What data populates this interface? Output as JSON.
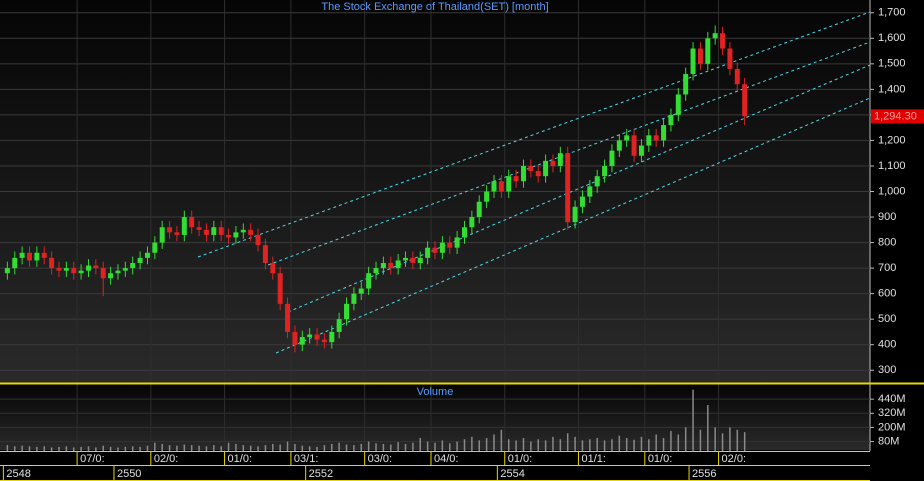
{
  "chart_data": [
    {
      "type": "candlestick",
      "title": "The Stock Exchange of Thailand(SET) [month]",
      "open": [
        680,
        700,
        740,
        760,
        730,
        760,
        740,
        700,
        690,
        700,
        680,
        690,
        710,
        700,
        660,
        680,
        690,
        700,
        720,
        740,
        760,
        800,
        860,
        840,
        830,
        900,
        860,
        850,
        830,
        860,
        830,
        820,
        840,
        850,
        830,
        790,
        720,
        680,
        560,
        450,
        400,
        430,
        440,
        420,
        410,
        450,
        500,
        560,
        600,
        620,
        680,
        700,
        720,
        700,
        730,
        740,
        720,
        740,
        780,
        760,
        800,
        780,
        820,
        860,
        900,
        960,
        1000,
        1040,
        1000,
        1060,
        1040,
        1100,
        1080,
        1060,
        1120,
        1100,
        1150,
        880,
        940,
        980,
        1020,
        1060,
        1100,
        1160,
        1200,
        1220,
        1140,
        1180,
        1220,
        1200,
        1260,
        1300,
        1380,
        1460,
        1560,
        1500,
        1600,
        1620,
        1560,
        1480,
        1420
      ],
      "high": [
        725,
        765,
        785,
        785,
        785,
        785,
        765,
        725,
        725,
        725,
        715,
        735,
        735,
        725,
        705,
        715,
        725,
        745,
        765,
        785,
        825,
        885,
        885,
        865,
        925,
        925,
        885,
        875,
        885,
        885,
        855,
        865,
        875,
        875,
        855,
        815,
        745,
        705,
        585,
        475,
        455,
        465,
        465,
        445,
        475,
        525,
        585,
        625,
        645,
        705,
        725,
        745,
        745,
        755,
        765,
        765,
        765,
        805,
        805,
        825,
        825,
        845,
        885,
        925,
        985,
        1025,
        1065,
        1065,
        1085,
        1085,
        1125,
        1125,
        1105,
        1145,
        1145,
        1175,
        1175,
        965,
        1005,
        1045,
        1085,
        1125,
        1185,
        1225,
        1245,
        1245,
        1205,
        1245,
        1245,
        1285,
        1325,
        1405,
        1485,
        1585,
        1585,
        1625,
        1650,
        1645,
        1585,
        1505,
        1445
      ],
      "low": [
        655,
        675,
        715,
        705,
        705,
        715,
        675,
        665,
        665,
        655,
        655,
        665,
        675,
        590,
        635,
        655,
        665,
        675,
        695,
        715,
        735,
        775,
        815,
        805,
        805,
        835,
        825,
        805,
        805,
        805,
        795,
        795,
        815,
        805,
        765,
        695,
        655,
        535,
        425,
        370,
        375,
        405,
        395,
        385,
        385,
        425,
        475,
        535,
        575,
        595,
        655,
        675,
        675,
        675,
        705,
        695,
        695,
        715,
        735,
        735,
        755,
        755,
        795,
        835,
        875,
        935,
        975,
        975,
        975,
        1015,
        1015,
        1055,
        1035,
        1035,
        1075,
        1075,
        850,
        855,
        915,
        955,
        995,
        1035,
        1075,
        1135,
        1175,
        1115,
        1115,
        1155,
        1175,
        1175,
        1235,
        1275,
        1355,
        1435,
        1475,
        1475,
        1575,
        1535,
        1455,
        1395,
        1260
      ],
      "close": [
        700,
        740,
        760,
        730,
        760,
        740,
        700,
        690,
        700,
        680,
        690,
        710,
        700,
        660,
        680,
        690,
        700,
        720,
        740,
        760,
        800,
        860,
        840,
        830,
        900,
        860,
        850,
        830,
        860,
        830,
        820,
        840,
        850,
        830,
        790,
        720,
        680,
        560,
        450,
        400,
        430,
        440,
        420,
        410,
        450,
        500,
        560,
        600,
        620,
        680,
        700,
        720,
        700,
        730,
        740,
        720,
        740,
        780,
        760,
        800,
        780,
        820,
        860,
        900,
        960,
        1000,
        1040,
        1000,
        1060,
        1040,
        1100,
        1080,
        1060,
        1120,
        1100,
        1150,
        880,
        940,
        980,
        1020,
        1060,
        1100,
        1160,
        1200,
        1220,
        1140,
        1180,
        1220,
        1200,
        1260,
        1300,
        1380,
        1460,
        1560,
        1500,
        1600,
        1620,
        1560,
        1480,
        1420,
        1294.3
      ],
      "last_label": "1,294.30",
      "up_color": "#33dd33",
      "down_color": "#e02222",
      "xlim": [
        -1,
        117
      ],
      "ylim": [
        250,
        1750
      ],
      "yticks": [
        300,
        400,
        500,
        600,
        700,
        800,
        900,
        {
          "value": 1000,
          "label": "1,000"
        },
        {
          "value": 1100,
          "label": "1,100"
        },
        {
          "value": 1200,
          "label": "1,200"
        },
        {
          "value": 1300,
          "label": "1,300"
        },
        {
          "value": 1400,
          "label": "1,400"
        },
        {
          "value": 1500,
          "label": "1,500"
        },
        {
          "value": 1600,
          "label": "1,600"
        },
        {
          "value": 1700,
          "label": "1,700"
        }
      ],
      "grid": true
    },
    {
      "type": "bar",
      "title": "Volume",
      "color": "#8a8a8a",
      "values": [
        50,
        40,
        45,
        40,
        35,
        40,
        30,
        35,
        40,
        30,
        35,
        40,
        30,
        45,
        35,
        30,
        35,
        40,
        35,
        45,
        70,
        60,
        50,
        45,
        55,
        50,
        45,
        40,
        50,
        40,
        70,
        60,
        50,
        45,
        40,
        50,
        60,
        55,
        80,
        60,
        45,
        40,
        35,
        50,
        60,
        70,
        55,
        50,
        60,
        80,
        65,
        60,
        55,
        75,
        60,
        70,
        110,
        80,
        70,
        90,
        65,
        80,
        100,
        120,
        90,
        110,
        140,
        180,
        100,
        90,
        110,
        80,
        100,
        90,
        120,
        100,
        150,
        120,
        90,
        100,
        110,
        90,
        100,
        130,
        110,
        95,
        120,
        100,
        140,
        110,
        170,
        140,
        200,
        520,
        180,
        390,
        200,
        150,
        200,
        180,
        160
      ],
      "xlim": [
        -1,
        117
      ],
      "ylim": [
        0,
        560
      ],
      "yticks": [
        {
          "value": 80,
          "label": "80M"
        },
        {
          "value": 200,
          "label": "200M"
        },
        {
          "value": 320,
          "label": "320M"
        },
        {
          "value": 440,
          "label": "440M"
        }
      ],
      "xticks": [
        {
          "value": 10,
          "label": "07/0:"
        },
        {
          "value": 20,
          "label": "02/0:"
        },
        {
          "value": 30,
          "label": "01/0:"
        },
        {
          "value": 39,
          "label": "03/1:"
        },
        {
          "value": 49,
          "label": "03/0:"
        },
        {
          "value": 58,
          "label": "04/0:"
        },
        {
          "value": 68,
          "label": "01/0:"
        },
        {
          "value": 78,
          "label": "01/1:"
        },
        {
          "value": 87,
          "label": "01/0:"
        },
        {
          "value": 97,
          "label": "02/0:"
        }
      ],
      "year_ticks": [
        {
          "value": 0,
          "label": "2548"
        },
        {
          "value": 15,
          "label": "2550"
        },
        {
          "value": 41,
          "label": "2552"
        },
        {
          "value": 67,
          "label": "2554"
        },
        {
          "value": 93,
          "label": "2556"
        }
      ]
    }
  ]
}
